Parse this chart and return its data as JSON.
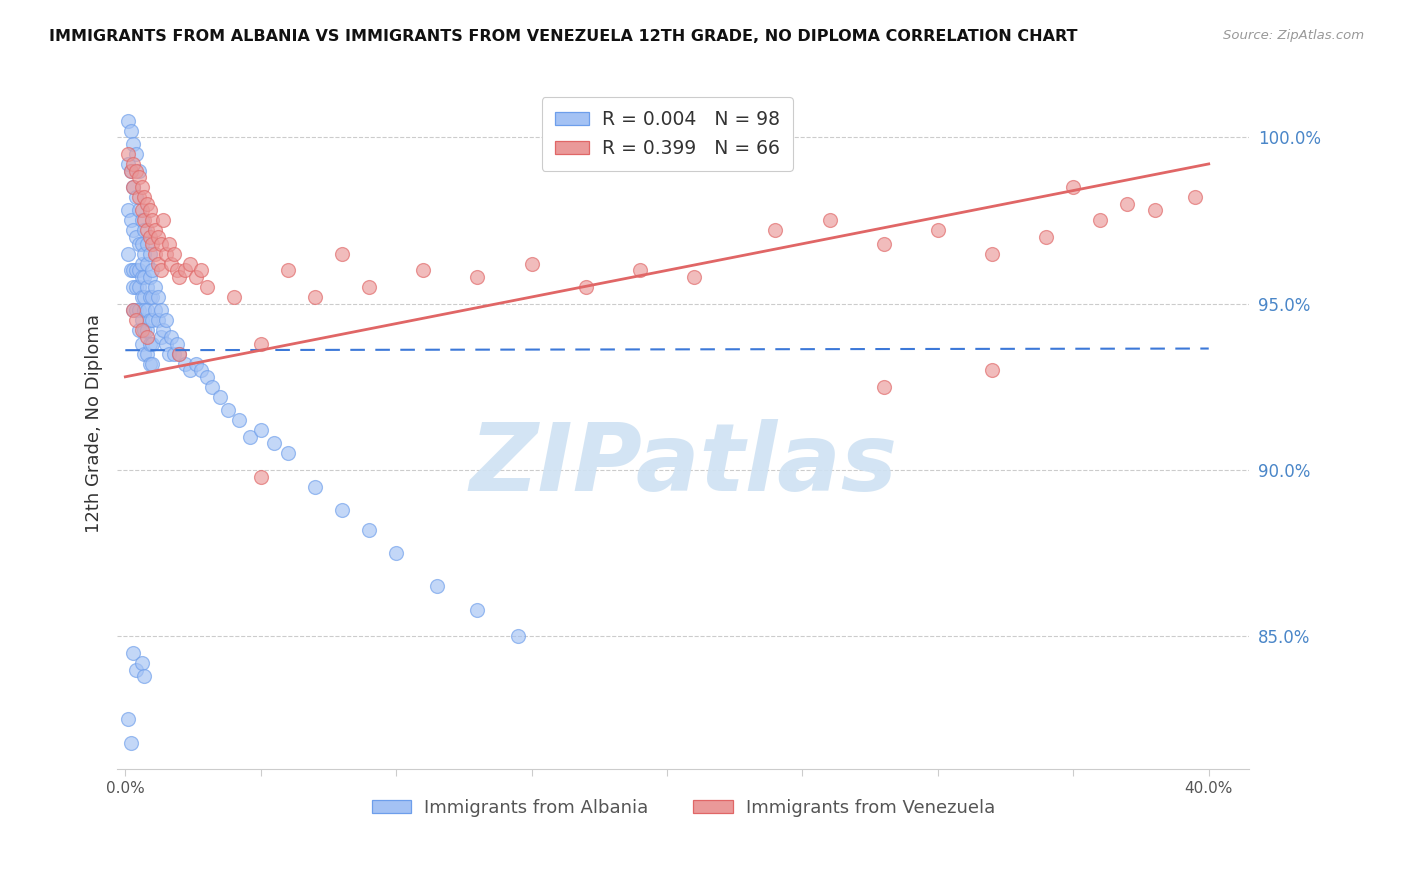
{
  "title": "IMMIGRANTS FROM ALBANIA VS IMMIGRANTS FROM VENEZUELA 12TH GRADE, NO DIPLOMA CORRELATION CHART",
  "source": "Source: ZipAtlas.com",
  "ylabel": "12th Grade, No Diploma",
  "ymin": 81.0,
  "ymax": 101.8,
  "xmin": -0.003,
  "xmax": 0.415,
  "yticks": [
    85.0,
    90.0,
    95.0,
    100.0
  ],
  "ytick_labels": [
    "85.0%",
    "90.0%",
    "95.0%",
    "100.0%"
  ],
  "albania_r": "0.004",
  "albania_n": "98",
  "venezuela_r": "0.399",
  "venezuela_n": "66",
  "albania_fill": "#a4c2f4",
  "albania_edge": "#6d9eeb",
  "venezuela_fill": "#ea9999",
  "venezuela_edge": "#e06666",
  "albania_line_color": "#3c78d8",
  "venezuela_line_color": "#e06666",
  "watermark": "ZIPatlas",
  "watermark_color": "#cfe2f3",
  "grid_color": "#cccccc",
  "legend_label_albania": "Immigrants from Albania",
  "legend_label_venezuela": "Immigrants from Venezuela",
  "albania_x": [
    0.001,
    0.001,
    0.001,
    0.001,
    0.002,
    0.002,
    0.002,
    0.002,
    0.003,
    0.003,
    0.003,
    0.003,
    0.003,
    0.003,
    0.004,
    0.004,
    0.004,
    0.004,
    0.004,
    0.004,
    0.005,
    0.005,
    0.005,
    0.005,
    0.005,
    0.005,
    0.005,
    0.006,
    0.006,
    0.006,
    0.006,
    0.006,
    0.006,
    0.006,
    0.007,
    0.007,
    0.007,
    0.007,
    0.007,
    0.007,
    0.007,
    0.008,
    0.008,
    0.008,
    0.008,
    0.008,
    0.008,
    0.009,
    0.009,
    0.009,
    0.009,
    0.009,
    0.009,
    0.01,
    0.01,
    0.01,
    0.01,
    0.01,
    0.011,
    0.011,
    0.012,
    0.012,
    0.013,
    0.013,
    0.014,
    0.015,
    0.015,
    0.016,
    0.017,
    0.018,
    0.019,
    0.02,
    0.022,
    0.024,
    0.026,
    0.028,
    0.03,
    0.032,
    0.035,
    0.038,
    0.042,
    0.046,
    0.05,
    0.055,
    0.06,
    0.07,
    0.08,
    0.09,
    0.1,
    0.115,
    0.13,
    0.145,
    0.003,
    0.004,
    0.006,
    0.007,
    0.001,
    0.002
  ],
  "albania_y": [
    100.5,
    99.2,
    97.8,
    96.5,
    100.2,
    99.0,
    97.5,
    96.0,
    99.8,
    98.5,
    97.2,
    96.0,
    95.5,
    94.8,
    99.5,
    98.2,
    97.0,
    96.0,
    95.5,
    94.8,
    99.0,
    97.8,
    96.8,
    96.0,
    95.5,
    94.8,
    94.2,
    97.5,
    96.8,
    96.2,
    95.8,
    95.2,
    94.5,
    93.8,
    97.2,
    96.5,
    95.8,
    95.2,
    94.8,
    94.2,
    93.5,
    96.8,
    96.2,
    95.5,
    94.8,
    94.2,
    93.5,
    96.5,
    95.8,
    95.2,
    94.5,
    93.8,
    93.2,
    96.0,
    95.2,
    94.5,
    93.8,
    93.2,
    95.5,
    94.8,
    95.2,
    94.5,
    94.8,
    94.0,
    94.2,
    94.5,
    93.8,
    93.5,
    94.0,
    93.5,
    93.8,
    93.5,
    93.2,
    93.0,
    93.2,
    93.0,
    92.8,
    92.5,
    92.2,
    91.8,
    91.5,
    91.0,
    91.2,
    90.8,
    90.5,
    89.5,
    88.8,
    88.2,
    87.5,
    86.5,
    85.8,
    85.0,
    84.5,
    84.0,
    84.2,
    83.8,
    82.5,
    81.8
  ],
  "venezuela_x": [
    0.001,
    0.002,
    0.003,
    0.003,
    0.004,
    0.005,
    0.005,
    0.006,
    0.006,
    0.007,
    0.007,
    0.008,
    0.008,
    0.009,
    0.009,
    0.01,
    0.01,
    0.011,
    0.011,
    0.012,
    0.012,
    0.013,
    0.013,
    0.014,
    0.015,
    0.016,
    0.017,
    0.018,
    0.019,
    0.02,
    0.022,
    0.024,
    0.026,
    0.028,
    0.03,
    0.04,
    0.05,
    0.06,
    0.07,
    0.08,
    0.09,
    0.11,
    0.13,
    0.15,
    0.17,
    0.19,
    0.21,
    0.24,
    0.26,
    0.28,
    0.3,
    0.32,
    0.34,
    0.36,
    0.38,
    0.395,
    0.003,
    0.004,
    0.006,
    0.008,
    0.02,
    0.05,
    0.28,
    0.32,
    0.35,
    0.37
  ],
  "venezuela_y": [
    99.5,
    99.0,
    99.2,
    98.5,
    99.0,
    98.8,
    98.2,
    98.5,
    97.8,
    98.2,
    97.5,
    98.0,
    97.2,
    97.8,
    97.0,
    97.5,
    96.8,
    97.2,
    96.5,
    97.0,
    96.2,
    96.8,
    96.0,
    97.5,
    96.5,
    96.8,
    96.2,
    96.5,
    96.0,
    95.8,
    96.0,
    96.2,
    95.8,
    96.0,
    95.5,
    95.2,
    89.8,
    96.0,
    95.2,
    96.5,
    95.5,
    96.0,
    95.8,
    96.2,
    95.5,
    96.0,
    95.8,
    97.2,
    97.5,
    96.8,
    97.2,
    96.5,
    97.0,
    97.5,
    97.8,
    98.2,
    94.8,
    94.5,
    94.2,
    94.0,
    93.5,
    93.8,
    92.5,
    93.0,
    98.5,
    98.0
  ],
  "albania_line_x": [
    0.0,
    0.4
  ],
  "albania_line_y": [
    93.6,
    93.65
  ],
  "venezuela_line_x": [
    0.0,
    0.4
  ],
  "venezuela_line_y": [
    92.8,
    99.2
  ]
}
